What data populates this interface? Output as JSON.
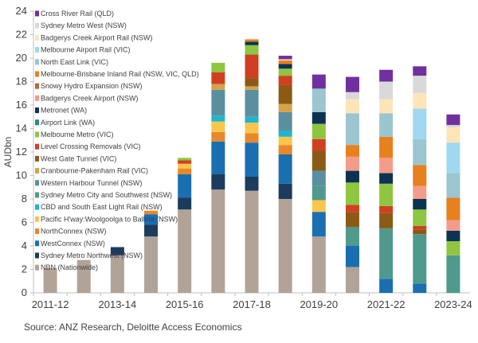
{
  "chart_data": {
    "type": "bar",
    "stacked": true,
    "ylabel": "AUDbn",
    "ylim": [
      0,
      24
    ],
    "yticks": [
      0,
      2,
      4,
      6,
      8,
      10,
      12,
      14,
      16,
      18,
      20,
      22,
      24
    ],
    "categories": [
      "2011-12",
      "2012-13",
      "2013-14",
      "2014-15",
      "2015-16",
      "2016-17",
      "2017-18",
      "2018-19",
      "2019-20",
      "2020-21",
      "2021-22",
      "2022-23",
      "2023-24"
    ],
    "xtick_labels": [
      "2011-12",
      "2013-14",
      "2015-16",
      "2017-18",
      "2019-20",
      "2021-22",
      "2023-24"
    ],
    "grid": false,
    "legend_placement": "top-left, inside plot",
    "series": [
      {
        "name": "NBN (Nationwide)",
        "color": "#b1a398",
        "values": [
          2.1,
          2.8,
          3.2,
          4.8,
          7.1,
          8.8,
          8.7,
          8.0,
          4.8,
          2.2,
          0,
          0,
          0
        ]
      },
      {
        "name": "Sydney Metro Northwest (NSW)",
        "color": "#1d3b5c",
        "values": [
          0,
          0,
          0.7,
          1.0,
          1.0,
          1.3,
          1.2,
          1.3,
          0,
          0,
          0,
          0,
          0
        ]
      },
      {
        "name": "WestConnex (NSW)",
        "color": "#1a6fb0",
        "values": [
          0,
          0,
          0,
          0.9,
          2.0,
          2.8,
          2.9,
          2.5,
          2.1,
          1.8,
          1.2,
          0.8,
          0
        ]
      },
      {
        "name": "NorthConnex (NSW)",
        "color": "#e9872a",
        "values": [
          0,
          0,
          0,
          0.3,
          0.5,
          0.8,
          0.8,
          0.8,
          0,
          0,
          0,
          0,
          0
        ]
      },
      {
        "name": "Pacific H'way:Woolgoolga to Ballina (NSW)",
        "color": "#f9c64c",
        "values": [
          0,
          0,
          0,
          0,
          0.4,
          0.9,
          0.9,
          0.7,
          1.0,
          0,
          0,
          0,
          0
        ]
      },
      {
        "name": "CBD and South East Light Rail (NSW)",
        "color": "#1fb5cf",
        "values": [
          0,
          0,
          0,
          0,
          0,
          0.5,
          0.5,
          0.5,
          0,
          0,
          0,
          0,
          0
        ]
      },
      {
        "name": "Sydney Metro City and Southwest (NSW)",
        "color": "#4f9a8d",
        "values": [
          0,
          0,
          0,
          0,
          0,
          0,
          0,
          0,
          1.2,
          1.6,
          4.3,
          4.2,
          3.2
        ]
      },
      {
        "name": "Western Harbour Tunnel (NSW)",
        "color": "#5a8fa0",
        "values": [
          0,
          0,
          0,
          0,
          0,
          2.2,
          2.3,
          1.6,
          1.3,
          0,
          0,
          0,
          0
        ]
      },
      {
        "name": "Cranbourne-Pakenham Rail (VIC)",
        "color": "#d4a24a",
        "values": [
          0,
          0,
          0,
          0,
          0,
          0.5,
          0.3,
          0.7,
          0,
          0,
          0,
          0,
          0
        ]
      },
      {
        "name": "West Gate Tunnel (VIC)",
        "color": "#8b5a15",
        "values": [
          0,
          0,
          0,
          0,
          0,
          0,
          0.7,
          1.6,
          1.7,
          1.3,
          1.3,
          0.4,
          0
        ]
      },
      {
        "name": "Level Crossing Removals (VIC)",
        "color": "#d13f22",
        "values": [
          0,
          0,
          0,
          0,
          0.3,
          1.0,
          2.0,
          0.8,
          1.0,
          0.6,
          0.6,
          0.3,
          0
        ]
      },
      {
        "name": "Melbourne Metro (VIC)",
        "color": "#8ec63f",
        "values": [
          0,
          0,
          0,
          0,
          0.2,
          0.8,
          0.8,
          0.6,
          1.3,
          1.9,
          1.9,
          1.4,
          1.2
        ]
      },
      {
        "name": "Airport Link (WA)",
        "color": "#2a8c83",
        "values": [
          0,
          0,
          0,
          0,
          0,
          0,
          0,
          0,
          0,
          0,
          0,
          0,
          0
        ]
      },
      {
        "name": "Metronet (WA)",
        "color": "#0d3352",
        "values": [
          0,
          0,
          0,
          0,
          0,
          0,
          0.3,
          0.4,
          1.0,
          1.0,
          0.9,
          0.9,
          0.9
        ]
      },
      {
        "name": "Badgerys Creek Airport (NSW)",
        "color": "#f49c8a",
        "values": [
          0,
          0,
          0,
          0,
          0,
          0,
          0,
          0,
          0,
          1.2,
          1.3,
          1.1,
          0.9
        ]
      },
      {
        "name": "Snowy Hydro Expansion (NSW)",
        "color": "#b06b3a",
        "values": [
          0,
          0,
          0,
          0,
          0,
          0,
          0,
          0,
          0,
          0,
          0,
          0,
          0
        ]
      },
      {
        "name": "Melbourne-Brisbane Inland Rail (NSW, VIC, QLD)",
        "color": "#e6811e",
        "values": [
          0,
          0,
          0,
          0,
          0,
          0,
          0.2,
          0.3,
          0,
          1.0,
          1.8,
          1.8,
          1.9
        ]
      },
      {
        "name": "North East Link (VIC)",
        "color": "#9bc6cf",
        "values": [
          0,
          0,
          0,
          0,
          0,
          0,
          0,
          0,
          2.0,
          2.7,
          2.0,
          2.2,
          2.1
        ]
      },
      {
        "name": "Melbourne Airport Rail (VIC)",
        "color": "#9fd8f0",
        "values": [
          0,
          0,
          0,
          0,
          0,
          0,
          0,
          0,
          0,
          0,
          0,
          2.6,
          2.6
        ]
      },
      {
        "name": "Badgerys Creek Airport Rail (NSW)",
        "color": "#fde5b8",
        "values": [
          0,
          0,
          0,
          0,
          0,
          0,
          0,
          0.1,
          0,
          1.2,
          1.2,
          1.3,
          1.3
        ]
      },
      {
        "name": "Sydney Metro West (NSW)",
        "color": "#d9d9d9",
        "values": [
          0,
          0,
          0,
          0,
          0,
          0,
          0,
          0,
          0,
          0.6,
          1.5,
          1.5,
          0.2
        ]
      },
      {
        "name": "Cross River Rail (QLD)",
        "color": "#7030a0",
        "values": [
          0,
          0,
          0,
          0,
          0,
          0,
          0,
          0.3,
          1.2,
          1.3,
          1.0,
          0.8,
          0.9
        ]
      }
    ],
    "legend_order_top_to_bottom": [
      "Cross River Rail (QLD)",
      "Sydney Metro West (NSW)",
      "Badgerys Creek Airport Rail (NSW)",
      "Melbourne Airport Rail (VIC)",
      "North East Link (VIC)",
      "Melbourne-Brisbane Inland Rail (NSW, VIC, QLD)",
      "Snowy Hydro Expansion (NSW)",
      "Badgerys Creek Airport (NSW)",
      "Metronet (WA)",
      "Airport Link (WA)",
      "Melbourne Metro (VIC)",
      "Level Crossing Removals (VIC)",
      "West Gate Tunnel (VIC)",
      "Cranbourne-Pakenham Rail (VIC)",
      "Western Harbour Tunnel (NSW)",
      "Sydney Metro City and Southwest (NSW)",
      "CBD and South East Light Rail (NSW)",
      "Pacific H'way:Woolgoolga to Ballina (NSW)",
      "NorthConnex (NSW)",
      "WestConnex (NSW)",
      "Sydney Metro Northwest (NSW)",
      "NBN (Nationwide)"
    ]
  },
  "source": "Source: ANZ Research, Deloitte Access Economics"
}
